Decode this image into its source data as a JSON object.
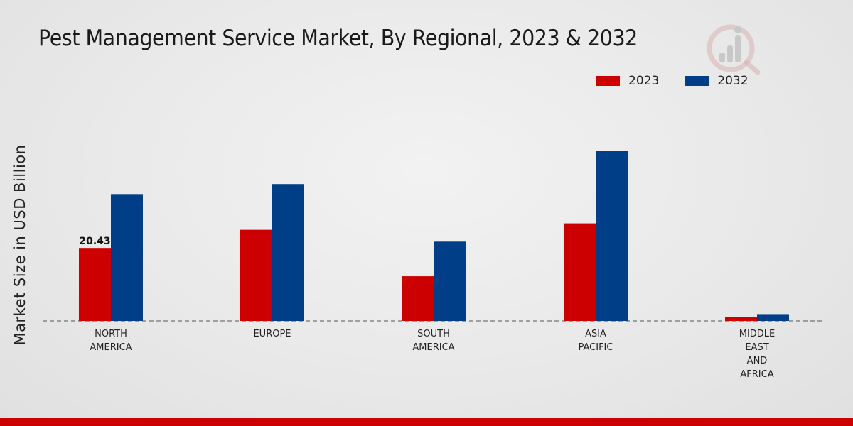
{
  "chart_data": {
    "type": "bar",
    "title": "Pest Management Service Market, By Regional, 2023 & 2032",
    "ylabel": "Market Size in USD Billion",
    "xlabel": "",
    "categories": [
      [
        "NORTH",
        "AMERICA"
      ],
      [
        "EUROPE"
      ],
      [
        "SOUTH",
        "AMERICA"
      ],
      [
        "ASIA",
        "PACIFIC"
      ],
      [
        "MIDDLE",
        "EAST",
        "AND",
        "AFRICA"
      ]
    ],
    "series": [
      {
        "name": "2023",
        "color": "#cc0000",
        "values": [
          20.43,
          25.5,
          12.5,
          27.3,
          1.1
        ]
      },
      {
        "name": "2032",
        "color": "#003f87",
        "values": [
          35.5,
          38.3,
          22.2,
          47.5,
          1.9
        ]
      }
    ],
    "data_labels": [
      {
        "series": 0,
        "index": 0,
        "text": "20.43"
      }
    ],
    "ylim": [
      0,
      60
    ],
    "grid": false,
    "legend": "top-right"
  }
}
